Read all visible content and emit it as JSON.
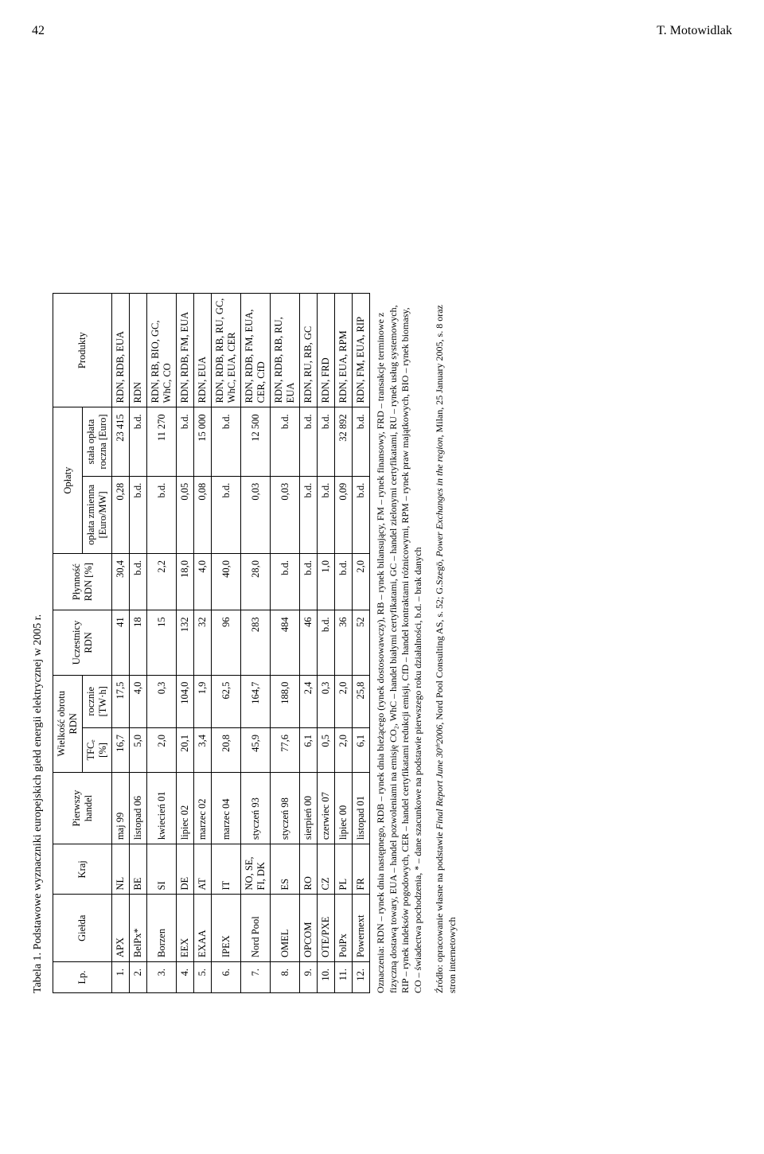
{
  "page_number": "42",
  "author_header": "T. Motowidlak",
  "table": {
    "caption": "Tabela 1. Podstawowe wyznaczniki europejskich giełd energii elektrycznej w 2005 r.",
    "headers": {
      "lp": "Lp.",
      "gielda": "Giełda",
      "kraj": "Kraj",
      "pierwszy_handel": "Pierwszy handel",
      "wielkosc": "Wielkość obrotu RDN",
      "tfce": "TFCₑ [%]",
      "rocznie": "rocznie [TW·h]",
      "uczestnicy": "Uczestnicy RDN",
      "plynnosc": "Płynność RDN [%]",
      "oplaty": "Opłaty",
      "oplata_zm": "opłata zmienna [Euro/MW]",
      "stala": "stała opłata roczna [Euro]",
      "produkty": "Produkty"
    },
    "rows": [
      {
        "lp": "1.",
        "g": "APX",
        "k": "NL",
        "ph": "maj 99",
        "tfce": "16,7",
        "roc": "17,5",
        "ucz": "41",
        "pl": "30,4",
        "ozm": "0,28",
        "st": "23 415",
        "pr": "RDN, RDB, EUA"
      },
      {
        "lp": "2.",
        "g": "BelPx*",
        "k": "BE",
        "ph": "listopad 06",
        "tfce": "5,0",
        "roc": "4,0",
        "ucz": "18",
        "pl": "b.d.",
        "ozm": "b.d.",
        "st": "b.d.",
        "pr": "RDN"
      },
      {
        "lp": "3.",
        "g": "Borzen",
        "k": "SI",
        "ph": "kwiecień 01",
        "tfce": "2,0",
        "roc": "0,3",
        "ucz": "15",
        "pl": "2,2",
        "ozm": "b.d.",
        "st": "11 270",
        "pr": "RDN, RB, BIO, GC, WhC, CO"
      },
      {
        "lp": "4.",
        "g": "EEX",
        "k": "DE",
        "ph": "lipiec 02",
        "tfce": "20,1",
        "roc": "104,0",
        "ucz": "132",
        "pl": "18,0",
        "ozm": "0,05",
        "st": "b.d.",
        "pr": "RDN, RDB, FM, EUA"
      },
      {
        "lp": "5.",
        "g": "EXAA",
        "k": "AT",
        "ph": "marzec 02",
        "tfce": "3,4",
        "roc": "1,9",
        "ucz": "32",
        "pl": "4,0",
        "ozm": "0,08",
        "st": "15 000",
        "pr": "RDN, EUA"
      },
      {
        "lp": "6.",
        "g": "IPEX",
        "k": "IT",
        "ph": "marzec 04",
        "tfce": "20,8",
        "roc": "62,5",
        "ucz": "96",
        "pl": "40,0",
        "ozm": "b.d.",
        "st": "b.d.",
        "pr": "RDN, RDB, RB, RU, GC, WhC, EUA, CER"
      },
      {
        "lp": "7.",
        "g": "Nord Pool",
        "k": "NO, SE, FI, DK",
        "ph": "styczeń 93",
        "tfce": "45,9",
        "roc": "164,7",
        "ucz": "283",
        "pl": "28,0",
        "ozm": "0,03",
        "st": "12 500",
        "pr": "RDN, RDB, FM, EUA, CER, CfD"
      },
      {
        "lp": "8.",
        "g": "OMEL",
        "k": "ES",
        "ph": "styczeń 98",
        "tfce": "77,6",
        "roc": "188,0",
        "ucz": "484",
        "pl": "b.d.",
        "ozm": "0,03",
        "st": "b.d.",
        "pr": "RDN, RDB, RB, RU, EUA"
      },
      {
        "lp": "9.",
        "g": "OPCOM",
        "k": "RO",
        "ph": "sierpień 00",
        "tfce": "6,1",
        "roc": "2,4",
        "ucz": "46",
        "pl": "b.d.",
        "ozm": "b.d.",
        "st": "b.d.",
        "pr": "RDN, RU, RB, GC"
      },
      {
        "lp": "10.",
        "g": "OTE/PXE",
        "k": "CZ",
        "ph": "czerwiec 07",
        "tfce": "0,5",
        "roc": "0,3",
        "ucz": "b.d.",
        "pl": "1,0",
        "ozm": "b.d.",
        "st": "b.d.",
        "pr": "RDN, FRD"
      },
      {
        "lp": "11.",
        "g": "PolPx",
        "k": "PL",
        "ph": "lipiec 00",
        "tfce": "2,0",
        "roc": "2,0",
        "ucz": "36",
        "pl": "b.d.",
        "ozm": "0,09",
        "st": "32 892",
        "pr": "RDN, EUA, RPM"
      },
      {
        "lp": "12.",
        "g": "Powernext",
        "k": "FR",
        "ph": "listopad 01",
        "tfce": "6,1",
        "roc": "25,8",
        "ucz": "52",
        "pl": "2,0",
        "ozm": "b.d.",
        "st": "b.d.",
        "pr": "RDN, FM, EUA, RIP"
      }
    ]
  },
  "notes_label": "Oznaczenia: RDN – rynek dnia następnego, RDB – rynek dnia bieżącego (rynek dostosowawczy), RB – rynek bilansujący, FM – rynek finansowy, FRD – transakcje terminowe z fizyczną dostawą towary, EUA – handel pozwoleniami na emisję CO₂, WhC – handel białymi certyfikatami, GC – handel zielonymi certyfikatami, RU – rynek usług systemowych, RIP – rynek indeksów pogodowych, CER – handel certyfikatami redukcji emisji, CfD – handel kontraktami różnicowymi, RPM – rynek praw majątkowych, BIO – rynek biomasy, CO – świadectwa pochodzenia, * – dane szacunkowe na podstawie pierwszego roku działalności, b.d. – brak danych",
  "source_label": "Źródło: opracowanie własne na podstawie Final Report June 30ᵗʰ2006, Nord Pool Consulting AS, s. 52; G.Szegö, Power Exchanges in the region, Milan, 25 January 2005, s. 8 oraz stron internetowych",
  "col_widths": {
    "lp": "28px",
    "g": "80px",
    "k": "62px",
    "ph": "90px",
    "tfce": "48px",
    "roc": "58px",
    "ucz": "72px",
    "pl": "62px",
    "ozm": "92px",
    "st": "86px",
    "pr": "160px"
  }
}
